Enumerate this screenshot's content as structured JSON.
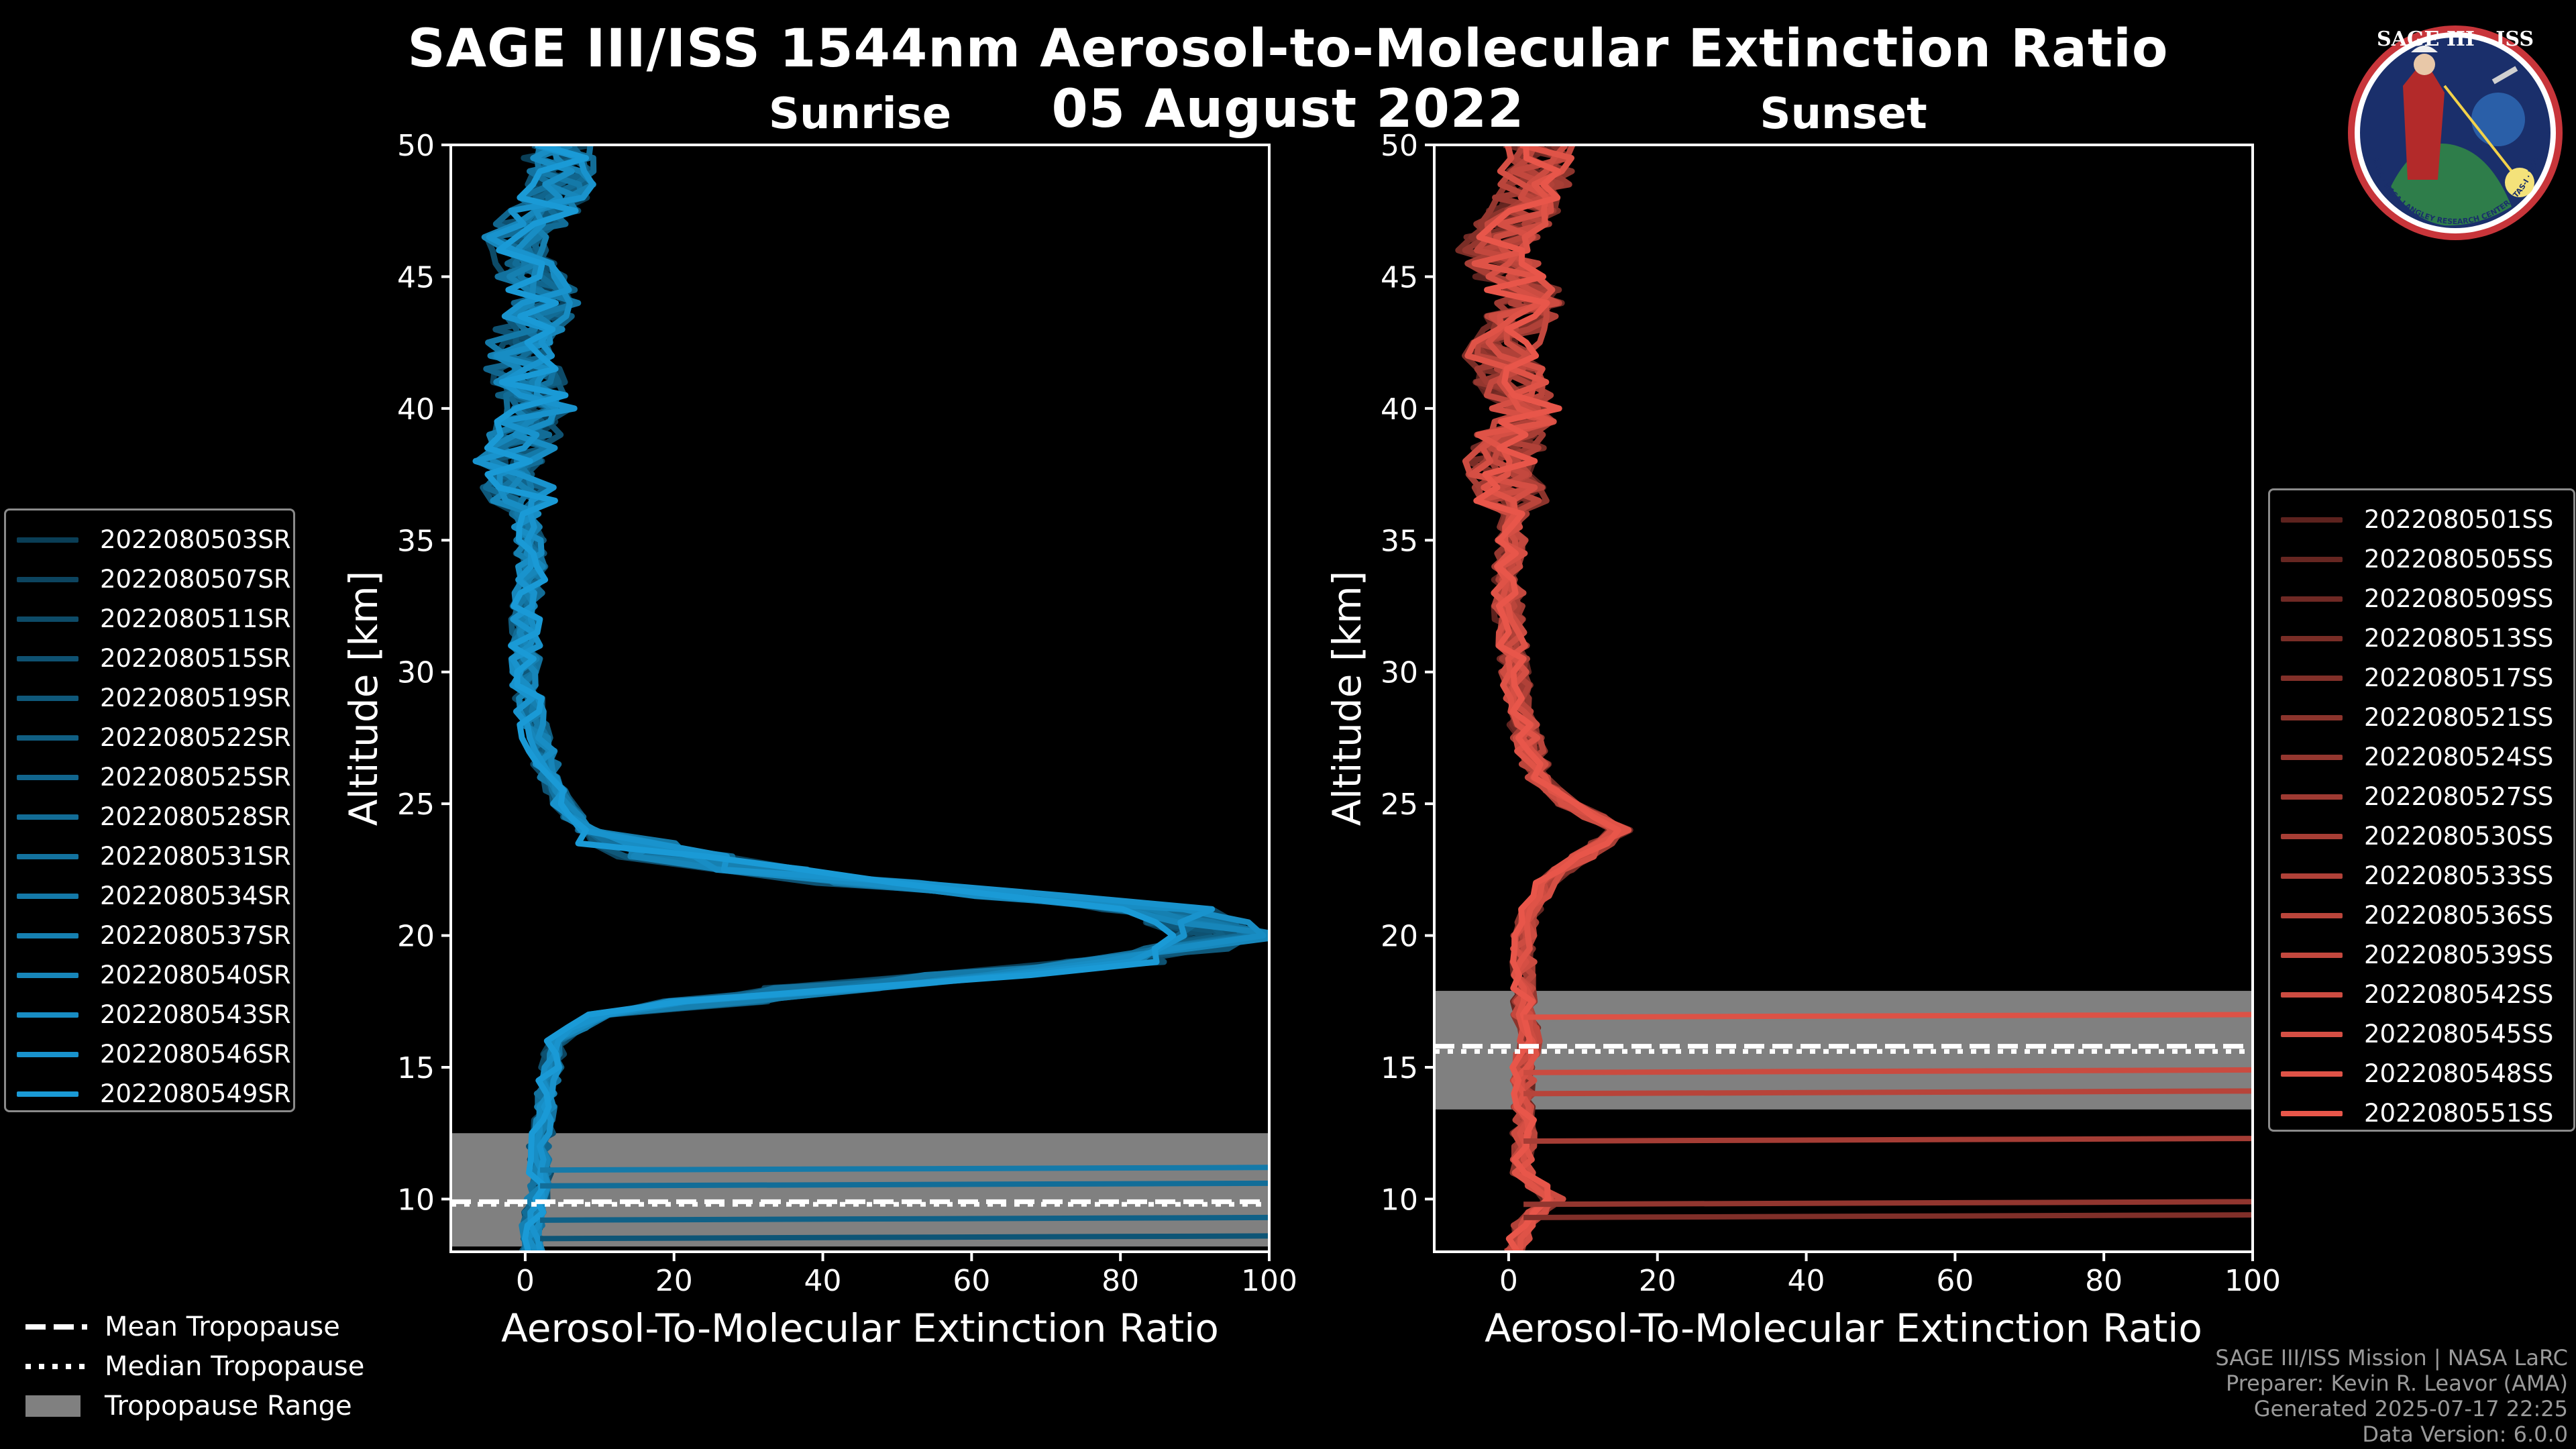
{
  "title": {
    "line1": "SAGE III/ISS 1544nm Aerosol-to-Molecular Extinction Ratio",
    "line2": "05 August 2022"
  },
  "panels": {
    "sunrise": {
      "title": "Sunrise"
    },
    "sunset": {
      "title": "Sunset"
    }
  },
  "colors": {
    "sunrise": "#1a9ad6",
    "sunset": "#e8564a",
    "tropo_band": "#808080"
  },
  "bottom_legend": {
    "mean": "Mean Tropopause",
    "median": "Median Tropopause",
    "range": "Tropopause Range"
  },
  "credits": [
    "SAGE III/ISS Mission | NASA LaRC",
    "Preparer: Kevin R. Leavor (AMA)",
    "Generated 2025-07-17 22:25",
    "Data Version: 6.0.0"
  ],
  "logo": {
    "name": "SAGE III · ISS",
    "ring_text": "BALL · NASA LANGLEY RESEARCH CENTER · TAS-I · ESA"
  },
  "chart_data": [
    {
      "type": "line",
      "title": "Sunrise",
      "xlabel": "Aerosol-To-Molecular Extinction Ratio",
      "ylabel": "Altitude [km]",
      "xlim": [
        -10,
        100
      ],
      "ylim": [
        8,
        50
      ],
      "xticks": [
        0,
        20,
        40,
        60,
        80,
        100
      ],
      "yticks": [
        10,
        15,
        20,
        25,
        30,
        35,
        40,
        45,
        50
      ],
      "tropopause": {
        "mean": 9.9,
        "median": 9.8,
        "range": [
          8.2,
          12.5
        ]
      },
      "series_names": [
        "2022080503SR",
        "2022080507SR",
        "2022080511SR",
        "2022080515SR",
        "2022080519SR",
        "2022080522SR",
        "2022080525SR",
        "2022080528SR",
        "2022080531SR",
        "2022080534SR",
        "2022080537SR",
        "2022080540SR",
        "2022080543SR",
        "2022080546SR",
        "2022080549SR"
      ],
      "representative_profile": {
        "altitude": [
          8,
          9,
          10,
          11,
          12,
          13,
          14,
          15,
          16,
          17,
          18,
          19,
          20,
          21,
          22,
          23,
          24,
          25,
          26,
          28,
          30,
          32,
          34,
          36,
          38,
          40,
          42,
          44,
          46,
          48,
          50
        ],
        "value": [
          1,
          1,
          1.5,
          2,
          2,
          2.5,
          3,
          3.5,
          4,
          10,
          40,
          80,
          95,
          85,
          45,
          20,
          8,
          5,
          3,
          1,
          0,
          0,
          1,
          0,
          -2,
          2,
          -1,
          3,
          -2,
          4,
          5
        ]
      }
    },
    {
      "type": "line",
      "title": "Sunset",
      "xlabel": "Aerosol-To-Molecular Extinction Ratio",
      "ylabel": "Altitude [km]",
      "xlim": [
        -10,
        100
      ],
      "ylim": [
        8,
        50
      ],
      "xticks": [
        0,
        20,
        40,
        60,
        80,
        100
      ],
      "yticks": [
        10,
        15,
        20,
        25,
        30,
        35,
        40,
        45,
        50
      ],
      "tropopause": {
        "mean": 15.8,
        "median": 15.6,
        "range": [
          13.4,
          17.9
        ]
      },
      "series_names": [
        "2022080501SS",
        "2022080505SS",
        "2022080509SS",
        "2022080513SS",
        "2022080517SS",
        "2022080521SS",
        "2022080524SS",
        "2022080527SS",
        "2022080530SS",
        "2022080533SS",
        "2022080536SS",
        "2022080539SS",
        "2022080542SS",
        "2022080545SS",
        "2022080548SS",
        "2022080551SS"
      ],
      "representative_profile": {
        "altitude": [
          8,
          9,
          10,
          11,
          12,
          13,
          14,
          15,
          16,
          17,
          18,
          19,
          20,
          21,
          22,
          23,
          24,
          25,
          26,
          28,
          30,
          32,
          34,
          36,
          38,
          40,
          42,
          44,
          46,
          48,
          50
        ],
        "value": [
          1,
          2,
          6,
          2,
          2,
          2,
          2,
          2,
          3,
          2,
          2,
          2,
          2,
          3,
          5,
          10,
          15,
          8,
          4,
          2,
          1,
          0,
          0,
          1,
          -1,
          2,
          -1,
          3,
          -2,
          3,
          4
        ]
      }
    }
  ]
}
